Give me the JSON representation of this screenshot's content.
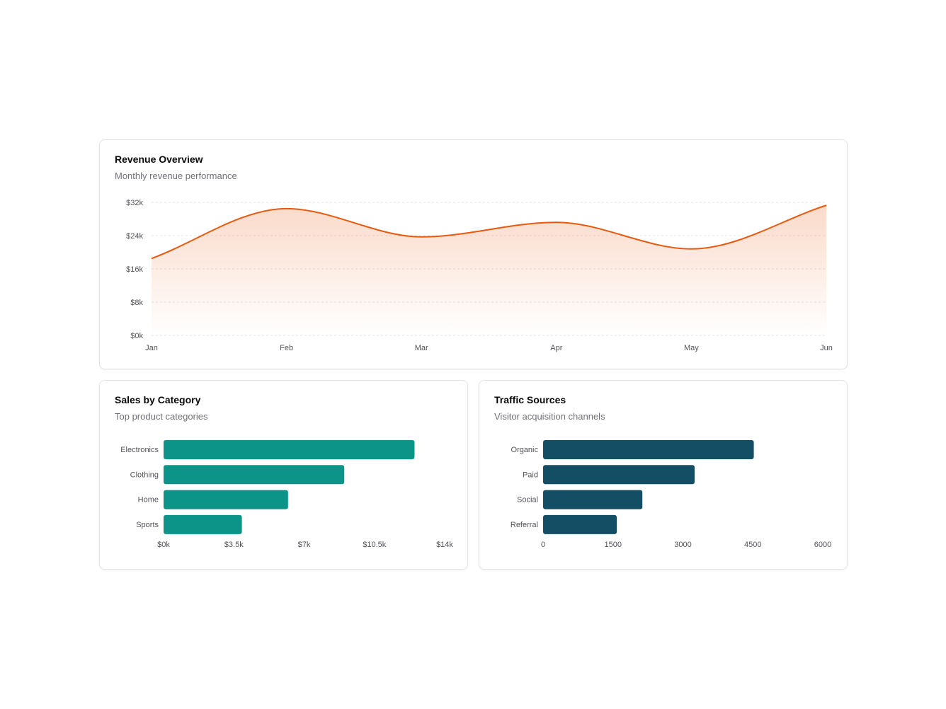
{
  "colors": {
    "revenue": "#ea580c",
    "sales": "#0d9488",
    "traffic": "#134e65"
  },
  "revenue": {
    "title": "Revenue Overview",
    "subtitle": "Monthly revenue performance",
    "chart_data": {
      "type": "area",
      "categories": [
        "Jan",
        "Feb",
        "Mar",
        "Apr",
        "May",
        "Jun"
      ],
      "values": [
        18.5,
        30.5,
        23.7,
        27.2,
        20.8,
        31.3
      ],
      "unit": "$k",
      "ylim": [
        0,
        32
      ],
      "yticks": [
        "$0k",
        "$8k",
        "$16k",
        "$24k",
        "$32k"
      ],
      "grid": true
    }
  },
  "sales": {
    "title": "Sales by Category",
    "subtitle": "Top product categories",
    "chart_data": {
      "type": "bar",
      "orientation": "horizontal",
      "categories": [
        "Electronics",
        "Clothing",
        "Home",
        "Sports"
      ],
      "values": [
        12.5,
        9.0,
        6.2,
        3.9
      ],
      "unit": "$k",
      "xlim": [
        0,
        14
      ],
      "xticks": [
        "$0k",
        "$3.5k",
        "$7k",
        "$10.5k",
        "$14k"
      ]
    }
  },
  "traffic": {
    "title": "Traffic Sources",
    "subtitle": "Visitor acquisition channels",
    "chart_data": {
      "type": "bar",
      "orientation": "horizontal",
      "categories": [
        "Organic",
        "Paid",
        "Social",
        "Referral"
      ],
      "values": [
        4520,
        3250,
        2130,
        1580
      ],
      "xlim": [
        0,
        6000
      ],
      "xticks": [
        "0",
        "1500",
        "3000",
        "4500",
        "6000"
      ]
    }
  }
}
